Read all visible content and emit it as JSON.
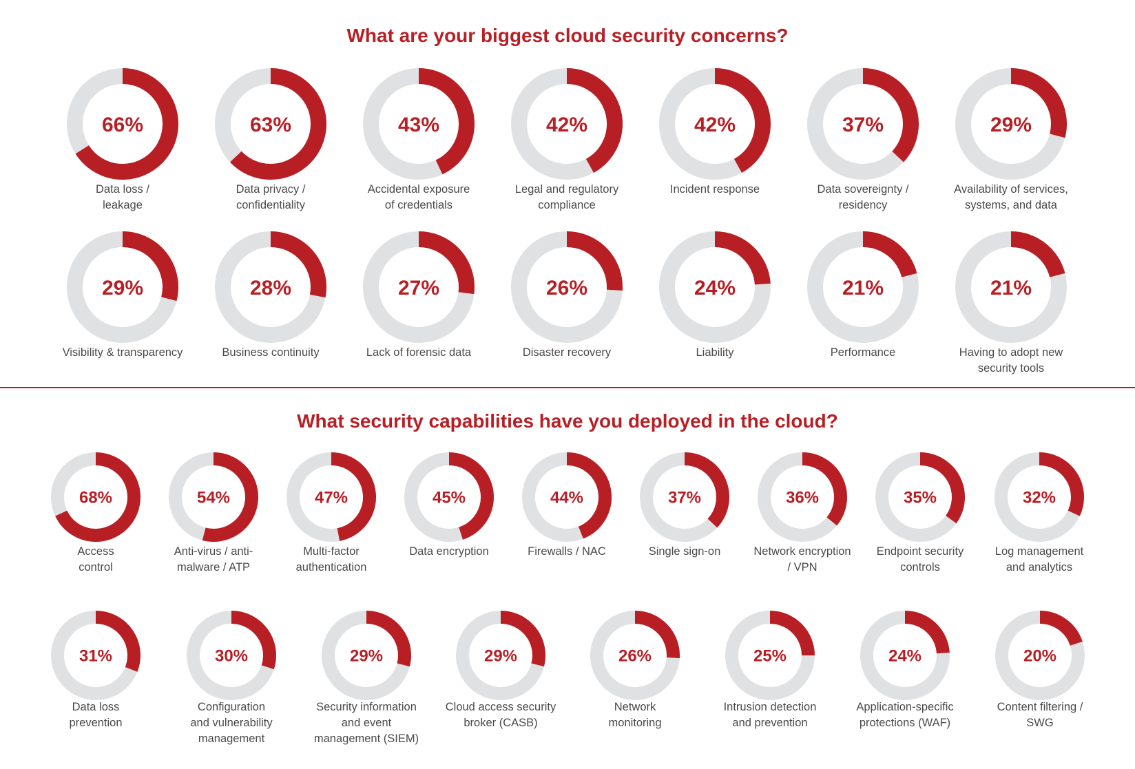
{
  "colors": {
    "accent": "#b81f25",
    "track": "#e0e1e3",
    "label": "#4a4a4a",
    "divider": "#b81f25"
  },
  "chart_data": [
    {
      "type": "donut",
      "title": "What are your biggest cloud security concerns?",
      "unit": "%",
      "items": [
        {
          "label": [
            "Data loss /",
            "leakage"
          ],
          "value": 66
        },
        {
          "label": [
            "Data privacy /",
            "confidentiality"
          ],
          "value": 63
        },
        {
          "label": [
            "Accidental exposure",
            "of credentials"
          ],
          "value": 43
        },
        {
          "label": [
            "Legal and regulatory",
            "compliance"
          ],
          "value": 42
        },
        {
          "label": [
            "Incident response"
          ],
          "value": 42
        },
        {
          "label": [
            "Data sovereignty /",
            "residency"
          ],
          "value": 37
        },
        {
          "label": [
            "Availability of services,",
            "systems, and data"
          ],
          "value": 29
        },
        {
          "label": [
            "Visibility & transparency"
          ],
          "value": 29
        },
        {
          "label": [
            "Business continuity"
          ],
          "value": 28
        },
        {
          "label": [
            "Lack of forensic data"
          ],
          "value": 27
        },
        {
          "label": [
            "Disaster recovery"
          ],
          "value": 26
        },
        {
          "label": [
            "Liability"
          ],
          "value": 24
        },
        {
          "label": [
            "Performance"
          ],
          "value": 21
        },
        {
          "label": [
            "Having to adopt new",
            "security tools"
          ],
          "value": 21
        }
      ]
    },
    {
      "type": "donut",
      "title": "What security capabilities have you deployed in the cloud?",
      "unit": "%",
      "items": [
        {
          "label": [
            "Access",
            "control"
          ],
          "value": 68
        },
        {
          "label": [
            "Anti-virus / anti-",
            "malware / ATP"
          ],
          "value": 54
        },
        {
          "label": [
            "Multi-factor",
            "authentication"
          ],
          "value": 47
        },
        {
          "label": [
            "Data encryption"
          ],
          "value": 45
        },
        {
          "label": [
            "Firewalls / NAC"
          ],
          "value": 44
        },
        {
          "label": [
            "Single sign-on"
          ],
          "value": 37
        },
        {
          "label": [
            "Network encryption",
            "/ VPN"
          ],
          "value": 36
        },
        {
          "label": [
            "Endpoint security",
            "controls"
          ],
          "value": 35
        },
        {
          "label": [
            "Log management",
            "and analytics"
          ],
          "value": 32
        },
        {
          "label": [
            "Data loss",
            "prevention"
          ],
          "value": 31
        },
        {
          "label": [
            "Configuration",
            "and vulnerability",
            "management"
          ],
          "value": 30
        },
        {
          "label": [
            "Security information",
            "and event",
            "management (SIEM)"
          ],
          "value": 29
        },
        {
          "label": [
            "Cloud access security",
            "broker (CASB)"
          ],
          "value": 29
        },
        {
          "label": [
            "Network",
            "monitoring"
          ],
          "value": 26
        },
        {
          "label": [
            "Intrusion detection",
            "and prevention"
          ],
          "value": 25
        },
        {
          "label": [
            "Application-specific",
            "protections (WAF)"
          ],
          "value": 24
        },
        {
          "label": [
            "Content filtering /",
            "SWG"
          ],
          "value": 20
        }
      ]
    }
  ]
}
